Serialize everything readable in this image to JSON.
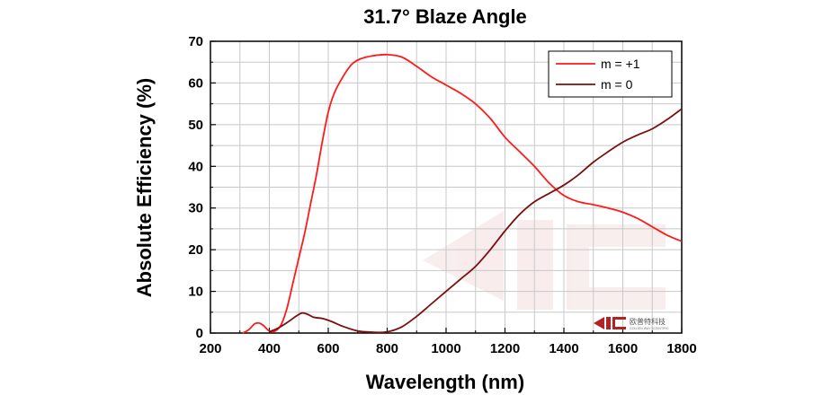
{
  "chart_data": {
    "type": "line",
    "title": "31.7° Blaze Angle",
    "xlabel": "Wavelength (nm)",
    "ylabel": "Absolute Efficiency (%)",
    "xlim": [
      200,
      1800
    ],
    "ylim": [
      0,
      70
    ],
    "xticks": [
      200,
      400,
      600,
      800,
      1000,
      1200,
      1400,
      1600,
      1800
    ],
    "yticks": [
      0,
      10,
      20,
      30,
      40,
      50,
      60,
      70
    ],
    "x_minor_step": 100,
    "y_minor_step": 5,
    "grid": true,
    "legend_position": "top-right",
    "series": [
      {
        "name": "m = +1",
        "color": "#ff1a1a",
        "points": [
          [
            310,
            0
          ],
          [
            330,
            0.8
          ],
          [
            350,
            2.2
          ],
          [
            365,
            2.4
          ],
          [
            380,
            1.8
          ],
          [
            400,
            0.5
          ],
          [
            420,
            0.5
          ],
          [
            440,
            2
          ],
          [
            460,
            6
          ],
          [
            480,
            12
          ],
          [
            500,
            18
          ],
          [
            520,
            24
          ],
          [
            540,
            31
          ],
          [
            560,
            38
          ],
          [
            580,
            46
          ],
          [
            600,
            53
          ],
          [
            620,
            57.5
          ],
          [
            650,
            61.5
          ],
          [
            680,
            64.5
          ],
          [
            710,
            65.8
          ],
          [
            750,
            66.5
          ],
          [
            800,
            66.8
          ],
          [
            850,
            66.2
          ],
          [
            900,
            64
          ],
          [
            950,
            61.5
          ],
          [
            1000,
            59.5
          ],
          [
            1050,
            57.5
          ],
          [
            1100,
            55
          ],
          [
            1150,
            51.5
          ],
          [
            1200,
            47
          ],
          [
            1250,
            43.5
          ],
          [
            1300,
            40
          ],
          [
            1350,
            36
          ],
          [
            1400,
            33
          ],
          [
            1450,
            31.5
          ],
          [
            1500,
            30.8
          ],
          [
            1550,
            30
          ],
          [
            1600,
            29
          ],
          [
            1650,
            27.5
          ],
          [
            1700,
            25.5
          ],
          [
            1750,
            23.5
          ],
          [
            1800,
            22
          ]
        ]
      },
      {
        "name": "m = 0",
        "color": "#7a1010",
        "points": [
          [
            400,
            0.3
          ],
          [
            430,
            1.2
          ],
          [
            460,
            2.5
          ],
          [
            490,
            4
          ],
          [
            510,
            4.8
          ],
          [
            530,
            4.5
          ],
          [
            550,
            3.8
          ],
          [
            580,
            3.5
          ],
          [
            610,
            2.8
          ],
          [
            650,
            1.6
          ],
          [
            700,
            0.5
          ],
          [
            750,
            0.2
          ],
          [
            800,
            0.3
          ],
          [
            850,
            1.5
          ],
          [
            900,
            4
          ],
          [
            950,
            7
          ],
          [
            1000,
            10
          ],
          [
            1050,
            13
          ],
          [
            1100,
            16
          ],
          [
            1150,
            20
          ],
          [
            1200,
            24.5
          ],
          [
            1250,
            28.5
          ],
          [
            1300,
            31.5
          ],
          [
            1350,
            33.5
          ],
          [
            1400,
            35.5
          ],
          [
            1450,
            38
          ],
          [
            1500,
            41
          ],
          [
            1550,
            43.5
          ],
          [
            1600,
            45.8
          ],
          [
            1650,
            47.5
          ],
          [
            1700,
            49
          ],
          [
            1750,
            51.2
          ],
          [
            1800,
            53.8
          ]
        ]
      }
    ]
  },
  "logo": {
    "name": "欧普特科技",
    "subtitle": "GOLDEN WAY SCIENTIFIC"
  }
}
